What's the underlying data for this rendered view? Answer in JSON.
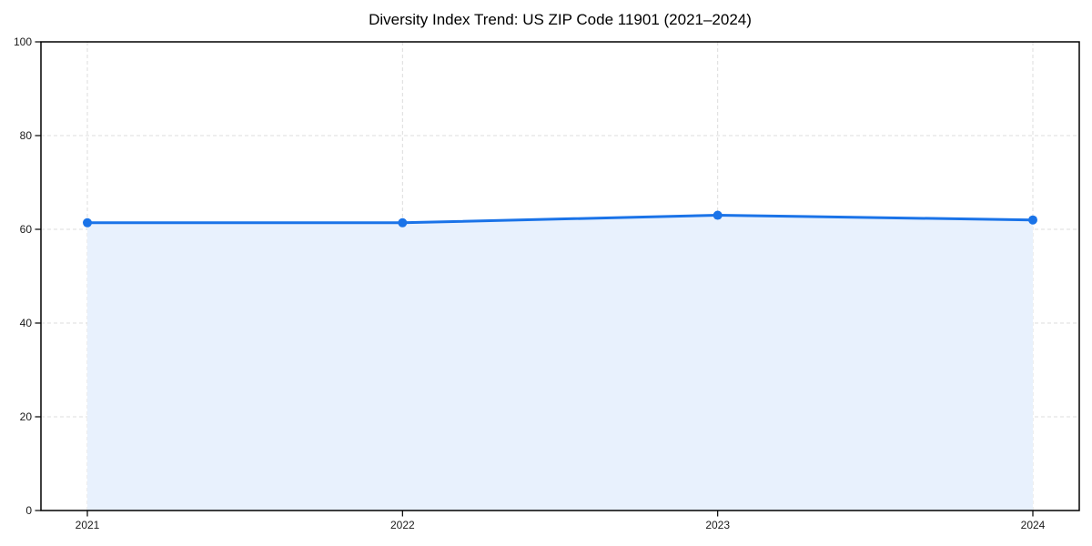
{
  "page": {
    "background": "#ffffff"
  },
  "chart_data": {
    "type": "area",
    "title": "Diversity Index Trend: US ZIP Code 11901 (2021–2024)",
    "categories": [
      "2021",
      "2022",
      "2023",
      "2024"
    ],
    "series": [
      {
        "name": "Diversity Index",
        "values": [
          61.4,
          61.4,
          63.0,
          62.0
        ]
      }
    ],
    "xlabel": "",
    "ylabel": "",
    "ylim": [
      0,
      100
    ],
    "yticks": [
      0,
      20,
      40,
      60,
      80,
      100
    ],
    "grid": true,
    "grid_style": "dashed",
    "legend": false,
    "marker": "circle",
    "colors": {
      "line": "#1a73e8",
      "marker": "#1a73e8",
      "fill": "#e8f1fd",
      "grid": "#dcdcdc",
      "spine": "#000000",
      "tick_text": "#1a1a1a",
      "title_text": "#000000"
    }
  }
}
